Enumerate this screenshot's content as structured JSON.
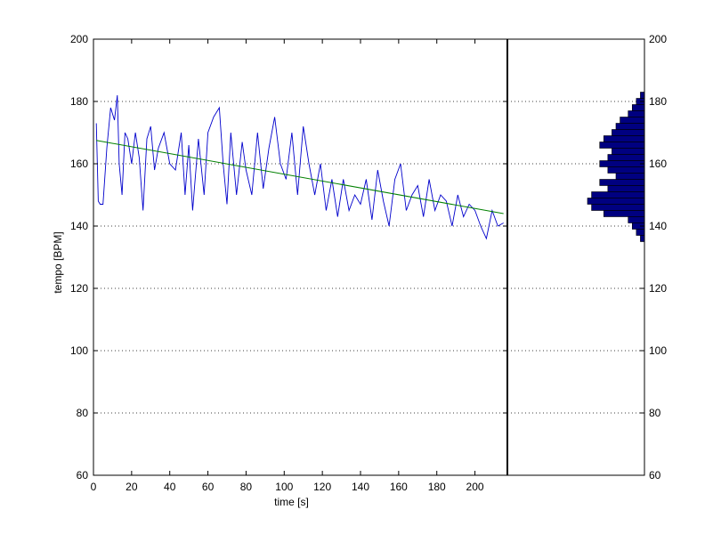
{
  "chart_data": [
    {
      "type": "line",
      "xlabel": "time [s]",
      "ylabel": "tempo [BPM]",
      "xlim": [
        0,
        217
      ],
      "ylim": [
        60,
        200
      ],
      "xticks": [
        0,
        20,
        40,
        60,
        80,
        100,
        120,
        140,
        160,
        180,
        200
      ],
      "yticks": [
        60,
        80,
        100,
        120,
        140,
        160,
        180,
        200
      ],
      "grid": "horizontal dotted",
      "series": [
        {
          "kind": "line",
          "color": "#0000cc",
          "x": [
            1.5,
            2.5,
            3.5,
            5,
            7,
            9,
            11,
            12.5,
            13.5,
            15,
            16.5,
            18,
            20,
            22,
            24,
            26,
            28,
            30,
            32,
            34,
            37,
            40,
            43,
            46,
            48,
            50,
            52,
            55,
            58,
            60,
            63,
            66,
            68,
            70,
            72,
            75,
            78,
            80,
            83,
            86,
            89,
            92,
            95,
            98,
            101,
            104,
            107,
            110,
            113,
            116,
            119,
            122,
            125,
            128,
            131,
            134,
            137,
            140,
            143,
            146,
            149,
            152,
            155,
            158,
            161,
            164,
            167,
            170,
            173,
            176,
            179,
            182,
            185,
            188,
            191,
            194,
            197,
            200,
            203,
            206,
            209,
            212,
            215
          ],
          "values": [
            173,
            148,
            147,
            147,
            165,
            178,
            174,
            182,
            160,
            150,
            170,
            168,
            160,
            170,
            162,
            145,
            168,
            172,
            158,
            165,
            170,
            160,
            158,
            170,
            150,
            166,
            145,
            168,
            150,
            170,
            175,
            178,
            160,
            147,
            170,
            150,
            167,
            158,
            150,
            170,
            152,
            165,
            175,
            160,
            155,
            170,
            150,
            172,
            160,
            150,
            160,
            145,
            155,
            143,
            155,
            145,
            150,
            147,
            155,
            142,
            158,
            148,
            140,
            155,
            160,
            145,
            150,
            153,
            143,
            155,
            145,
            150,
            148,
            140,
            150,
            143,
            147,
            145,
            140,
            136,
            145,
            140,
            141
          ]
        },
        {
          "kind": "line",
          "color": "#008000",
          "x": [
            1.5,
            215
          ],
          "values": [
            167.5,
            144
          ]
        }
      ]
    },
    {
      "type": "bar",
      "orientation": "horizontal",
      "ylim": [
        60,
        200
      ],
      "yticks": [
        60,
        80,
        100,
        120,
        140,
        160,
        180,
        200
      ],
      "color": "#000080",
      "bin_width": 2,
      "bin_centers": [
        136,
        138,
        140,
        142,
        144,
        146,
        148,
        150,
        152,
        154,
        156,
        158,
        160,
        162,
        164,
        166,
        168,
        170,
        172,
        174,
        176,
        178,
        180,
        182
      ],
      "values": [
        1,
        2,
        3,
        4,
        10,
        13,
        14,
        13,
        9,
        11,
        7,
        9,
        11,
        9,
        8,
        11,
        10,
        8,
        7,
        6,
        4,
        3,
        2,
        1
      ]
    }
  ]
}
